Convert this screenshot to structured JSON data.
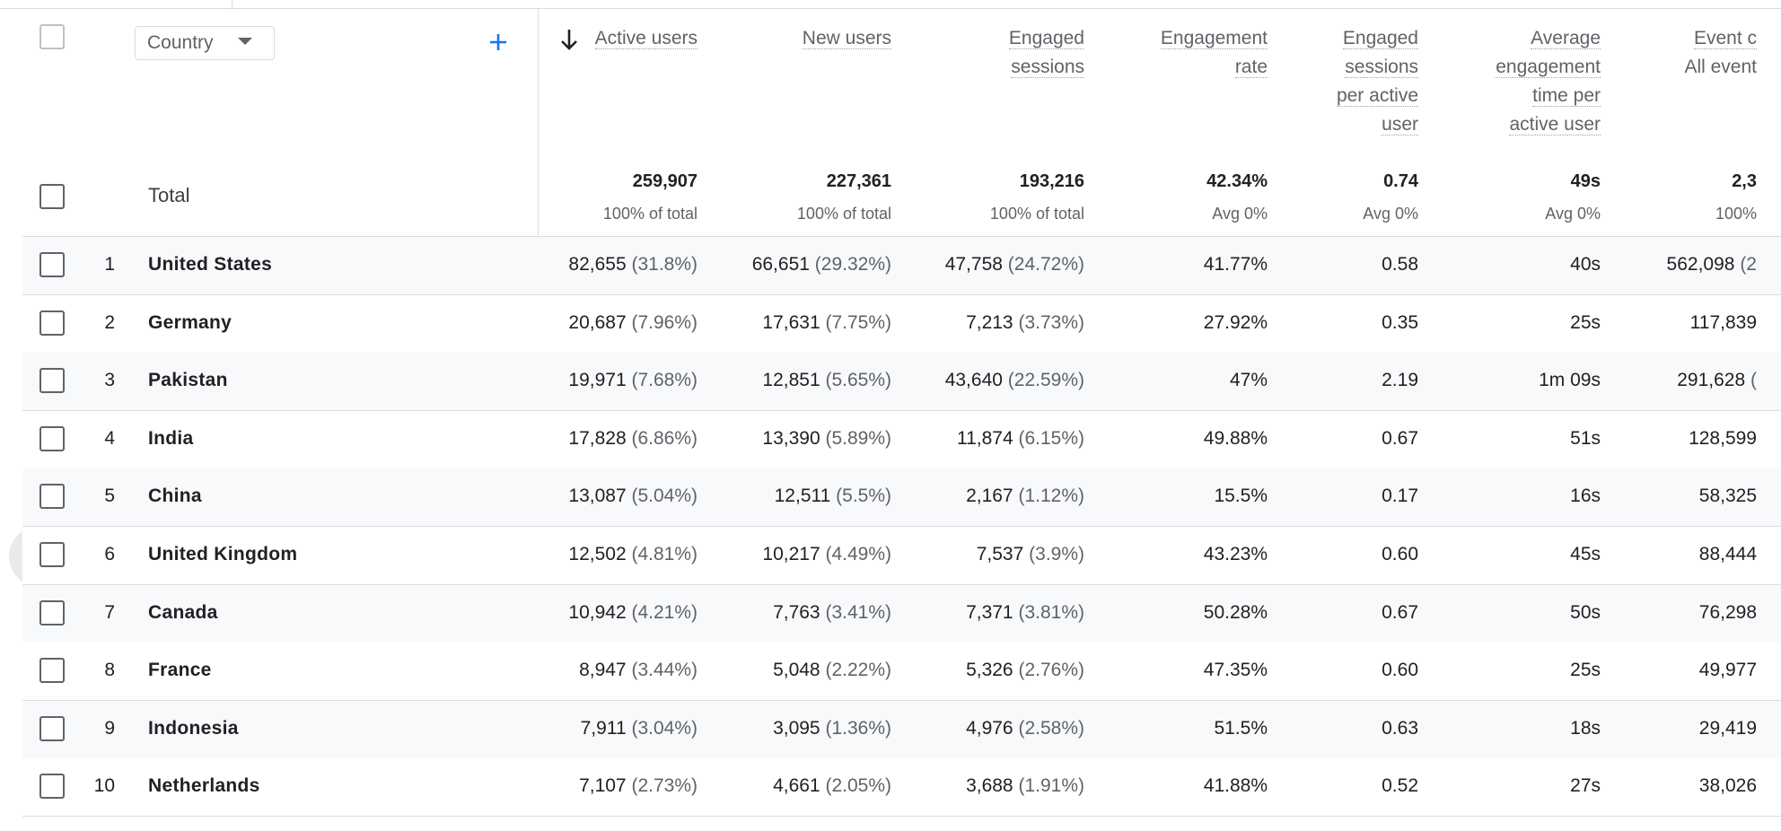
{
  "table": {
    "dimension": "Country",
    "columns": [
      {
        "lines": [
          "Active users"
        ]
      },
      {
        "lines": [
          "New users"
        ]
      },
      {
        "lines": [
          "Engaged",
          "sessions"
        ]
      },
      {
        "lines": [
          "Engagement",
          "rate"
        ]
      },
      {
        "lines": [
          "Engaged",
          "sessions",
          "per active",
          "user"
        ]
      },
      {
        "lines": [
          "Average",
          "engagement",
          "time per",
          "active user"
        ]
      },
      {
        "lines": [
          "Event c"
        ],
        "sub": "All event"
      }
    ],
    "total": {
      "label": "Total",
      "cells": [
        {
          "value": "259,907",
          "sub": "100% of total"
        },
        {
          "value": "227,361",
          "sub": "100% of total"
        },
        {
          "value": "193,216",
          "sub": "100% of total"
        },
        {
          "value": "42.34%",
          "sub": "Avg 0%"
        },
        {
          "value": "0.74",
          "sub": "Avg 0%"
        },
        {
          "value": "49s",
          "sub": "Avg 0%"
        },
        {
          "value": "2,3",
          "sub": "100%"
        }
      ]
    },
    "rows": [
      {
        "rank": "1",
        "country": "United States",
        "cells": [
          [
            "82,655",
            "(31.8%)"
          ],
          [
            "66,651",
            "(29.32%)"
          ],
          [
            "47,758",
            "(24.72%)"
          ],
          [
            "41.77%"
          ],
          [
            "0.58"
          ],
          [
            "40s"
          ],
          [
            "562,098",
            "(2"
          ]
        ]
      },
      {
        "rank": "2",
        "country": "Germany",
        "cells": [
          [
            "20,687",
            "(7.96%)"
          ],
          [
            "17,631",
            "(7.75%)"
          ],
          [
            "7,213",
            "(3.73%)"
          ],
          [
            "27.92%"
          ],
          [
            "0.35"
          ],
          [
            "25s"
          ],
          [
            "117,839"
          ]
        ]
      },
      {
        "rank": "3",
        "country": "Pakistan",
        "cells": [
          [
            "19,971",
            "(7.68%)"
          ],
          [
            "12,851",
            "(5.65%)"
          ],
          [
            "43,640",
            "(22.59%)"
          ],
          [
            "47%"
          ],
          [
            "2.19"
          ],
          [
            "1m 09s"
          ],
          [
            "291,628",
            "("
          ]
        ]
      },
      {
        "rank": "4",
        "country": "India",
        "cells": [
          [
            "17,828",
            "(6.86%)"
          ],
          [
            "13,390",
            "(5.89%)"
          ],
          [
            "11,874",
            "(6.15%)"
          ],
          [
            "49.88%"
          ],
          [
            "0.67"
          ],
          [
            "51s"
          ],
          [
            "128,599"
          ]
        ]
      },
      {
        "rank": "5",
        "country": "China",
        "cells": [
          [
            "13,087",
            "(5.04%)"
          ],
          [
            "12,511",
            "(5.5%)"
          ],
          [
            "2,167",
            "(1.12%)"
          ],
          [
            "15.5%"
          ],
          [
            "0.17"
          ],
          [
            "16s"
          ],
          [
            "58,325"
          ]
        ]
      },
      {
        "rank": "6",
        "country": "United Kingdom",
        "cells": [
          [
            "12,502",
            "(4.81%)"
          ],
          [
            "10,217",
            "(4.49%)"
          ],
          [
            "7,537",
            "(3.9%)"
          ],
          [
            "43.23%"
          ],
          [
            "0.60"
          ],
          [
            "45s"
          ],
          [
            "88,444"
          ]
        ]
      },
      {
        "rank": "7",
        "country": "Canada",
        "cells": [
          [
            "10,942",
            "(4.21%)"
          ],
          [
            "7,763",
            "(3.41%)"
          ],
          [
            "7,371",
            "(3.81%)"
          ],
          [
            "50.28%"
          ],
          [
            "0.67"
          ],
          [
            "50s"
          ],
          [
            "76,298"
          ]
        ]
      },
      {
        "rank": "8",
        "country": "France",
        "cells": [
          [
            "8,947",
            "(3.44%)"
          ],
          [
            "5,048",
            "(2.22%)"
          ],
          [
            "5,326",
            "(2.76%)"
          ],
          [
            "47.35%"
          ],
          [
            "0.60"
          ],
          [
            "25s"
          ],
          [
            "49,977"
          ]
        ]
      },
      {
        "rank": "9",
        "country": "Indonesia",
        "cells": [
          [
            "7,911",
            "(3.04%)"
          ],
          [
            "3,095",
            "(1.36%)"
          ],
          [
            "4,976",
            "(2.58%)"
          ],
          [
            "51.5%"
          ],
          [
            "0.63"
          ],
          [
            "18s"
          ],
          [
            "29,419"
          ]
        ]
      },
      {
        "rank": "10",
        "country": "Netherlands",
        "cells": [
          [
            "7,107",
            "(2.73%)"
          ],
          [
            "4,661",
            "(2.05%)"
          ],
          [
            "3,688",
            "(1.91%)"
          ],
          [
            "41.88%"
          ],
          [
            "0.52"
          ],
          [
            "27s"
          ],
          [
            "38,026"
          ]
        ]
      }
    ]
  }
}
